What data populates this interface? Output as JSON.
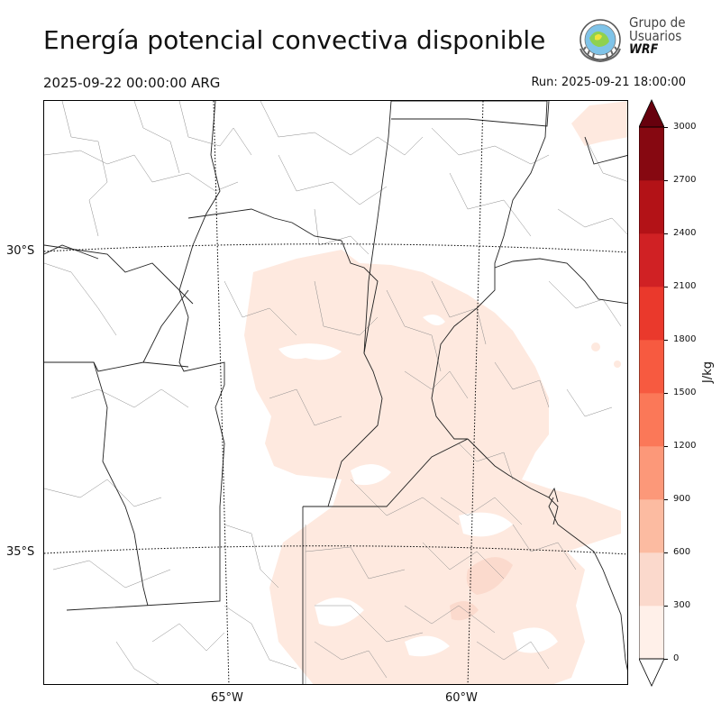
{
  "header": {
    "title": "Energía potencial convectiva disponible",
    "valid_time": "2025-09-22 00:00:00 ARG",
    "run_time": "Run: 2025-09-21 18:00:00"
  },
  "logo": {
    "line1": "Grupo de",
    "line2": "Usuarios",
    "line3": "WRF",
    "icon": "wrf-globe-icon"
  },
  "map": {
    "lat_labels": [
      "30°S",
      "35°S"
    ],
    "lon_labels": [
      "65°W",
      "60°W"
    ]
  },
  "colorbar": {
    "unit": "J/kg",
    "ticks": [
      "0",
      "300",
      "600",
      "900",
      "1200",
      "1500",
      "1800",
      "2100",
      "2400",
      "2700",
      "3000"
    ],
    "levels": [
      0,
      300,
      600,
      900,
      1200,
      1500,
      1800,
      2100,
      2400,
      2700,
      3000
    ],
    "colors": [
      "#fff0e9",
      "#fbd9cc",
      "#fcbba1",
      "#fc9879",
      "#fb7858",
      "#f75a40",
      "#ea392c",
      "#d02124",
      "#b31217",
      "#860811"
    ],
    "under_color": "#ffffff",
    "over_color": "#67000d"
  }
}
